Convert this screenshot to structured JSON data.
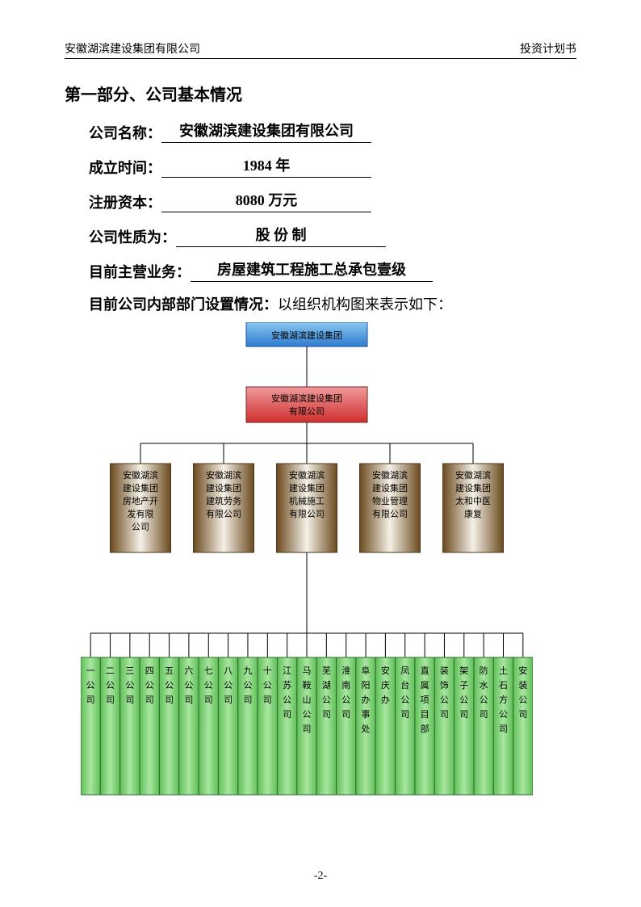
{
  "header": {
    "left": "安徽湖滨建设集团有限公司",
    "right": "投资计划书"
  },
  "section_title": "第一部分、公司基本情况",
  "fields": [
    {
      "label": "公司名称：",
      "value": "安徽湖滨建设集团有限公司"
    },
    {
      "label": "成立时间：",
      "value": "1984 年"
    },
    {
      "label": "注册资本：",
      "value": "8080 万元"
    },
    {
      "label": "公司性质为：",
      "value": "股 份 制"
    },
    {
      "label": "目前主营业务：",
      "value": "房屋建筑工程施工总承包壹级"
    }
  ],
  "org_desc_label": "目前公司内部部门设置情况：",
  "org_desc_text": "以组织机构图来表示如下：",
  "chart": {
    "top": {
      "label": "安徽湖滨建设集团",
      "fontsize": 11
    },
    "mid": {
      "lines": [
        "安徽湖滨建设集团",
        "有限公司"
      ],
      "fontsize": 11
    },
    "subs": [
      {
        "lines": [
          "安徽湖滨",
          "建设集团",
          "房地产开",
          "发有限",
          "公司"
        ]
      },
      {
        "lines": [
          "安徽湖滨",
          "建设集团",
          "建筑劳务",
          "有限公司"
        ]
      },
      {
        "lines": [
          "安徽湖滨",
          "建设集团",
          "机械施工",
          "有限公司"
        ]
      },
      {
        "lines": [
          "安徽湖滨",
          "建设集团",
          "物业管理",
          "有限公司"
        ]
      },
      {
        "lines": [
          "安徽湖滨",
          "建设集团",
          "太和中医",
          "康复"
        ]
      }
    ],
    "sub_fontsize": 11,
    "leaves": [
      "一公司",
      "二公司",
      "三公司",
      "四公司",
      "五公司",
      "六公司",
      "七公司",
      "八公司",
      "九公司",
      "十公司",
      "江苏公司",
      "马鞍山公司",
      "芜湖公司",
      "淮南公司",
      "阜阳办事处",
      "安庆办",
      "凤台公司",
      "直属项目部",
      "装饰公司",
      "架子公司",
      "防水公司",
      "土石方公司",
      "安装公司"
    ],
    "leaf_fontsize": 11,
    "colors": {
      "blue_top": "#87c7f0",
      "blue_bottom": "#2f7cd0",
      "red_top": "#f09a9a",
      "red_bottom": "#d02f2f",
      "brown_left": "#6b4a1e",
      "brown_mid": "#f5f0e6",
      "brown_right": "#6b4a1e",
      "green_light": "#a8e6a0",
      "green_dark": "#5fbf57"
    }
  },
  "page_number": "-2-"
}
